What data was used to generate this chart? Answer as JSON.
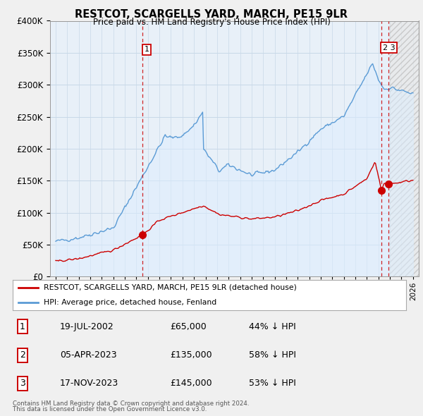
{
  "title": "RESTCOT, SCARGELLS YARD, MARCH, PE15 9LR",
  "subtitle": "Price paid vs. HM Land Registry's House Price Index (HPI)",
  "legend_line1": "RESTCOT, SCARGELLS YARD, MARCH, PE15 9LR (detached house)",
  "legend_line2": "HPI: Average price, detached house, Fenland",
  "transactions": [
    {
      "id": 1,
      "date": "19-JUL-2002",
      "price": 65000,
      "pct": "44%",
      "dir": "↓",
      "year_x": 2002.54,
      "price_y": 65000
    },
    {
      "id": 2,
      "date": "05-APR-2023",
      "price": 135000,
      "pct": "58%",
      "dir": "↓",
      "year_x": 2023.26,
      "price_y": 135000
    },
    {
      "id": 3,
      "date": "17-NOV-2023",
      "price": 145000,
      "pct": "53%",
      "dir": "↓",
      "year_x": 2023.88,
      "price_y": 145000
    }
  ],
  "footer1": "Contains HM Land Registry data © Crown copyright and database right 2024.",
  "footer2": "This data is licensed under the Open Government Licence v3.0.",
  "red_color": "#cc0000",
  "blue_color": "#5b9bd5",
  "blue_fill": "#ddeeff",
  "bg_color": "#f0f0f0",
  "plot_bg": "#e8f0f8",
  "grid_color": "#c8d8e8",
  "ylim": [
    0,
    400000
  ],
  "xlim_start": 1994.5,
  "xlim_end": 2026.5,
  "hatch_start": 2024.0
}
